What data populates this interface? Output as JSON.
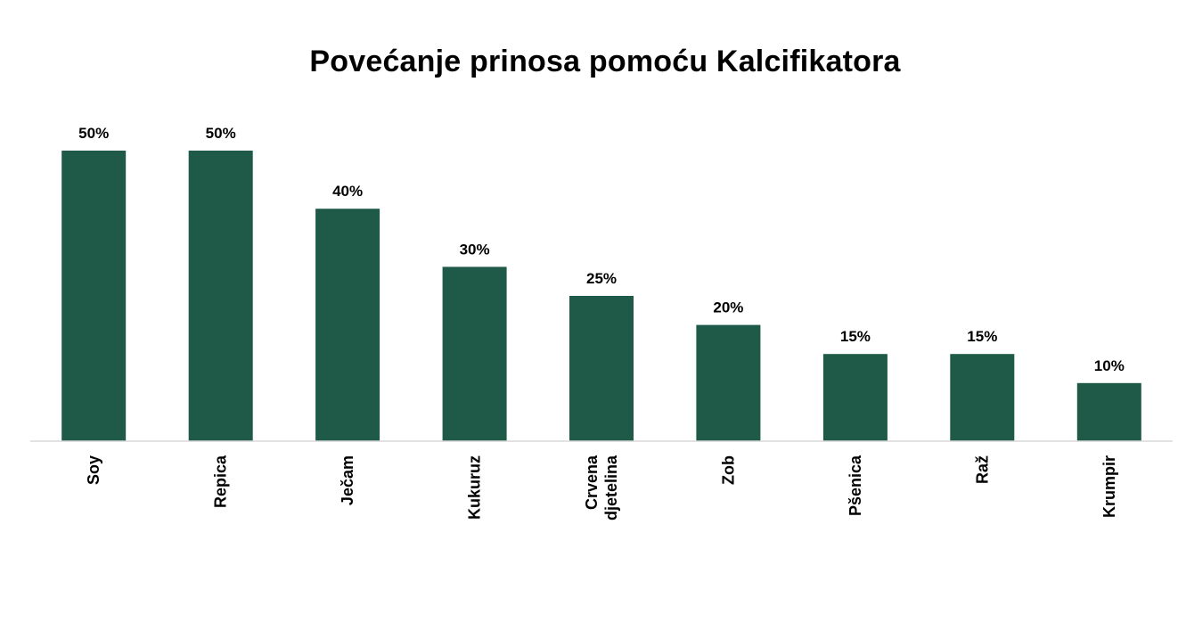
{
  "chart_data": {
    "type": "bar",
    "title": "Povećanje prinosa pomoću Kalcifikatora",
    "categories": [
      [
        "Soy"
      ],
      [
        "Repica"
      ],
      [
        "Ječam"
      ],
      [
        "Kukuruz"
      ],
      [
        "Crvena",
        "djetelina"
      ],
      [
        "Zob"
      ],
      [
        "Pšenica"
      ],
      [
        "Raž"
      ],
      [
        "Krumpir"
      ]
    ],
    "values": [
      50,
      50,
      40,
      30,
      25,
      20,
      15,
      15,
      10
    ],
    "value_labels": [
      "50%",
      "50%",
      "40%",
      "30%",
      "25%",
      "20%",
      "15%",
      "15%",
      "10%"
    ],
    "ylim": [
      0,
      50
    ],
    "grid": false,
    "legend": "none",
    "bar_color": "#1e5a47",
    "axis_color": "#d9d9d9",
    "category_label_orientation": "vertical"
  }
}
